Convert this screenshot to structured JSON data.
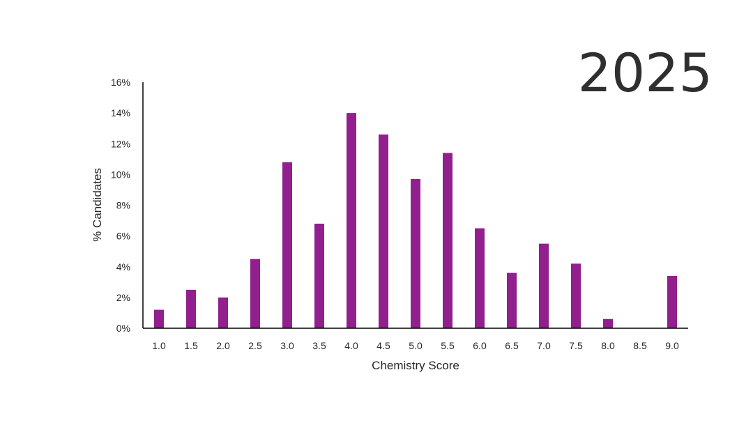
{
  "year": "2025",
  "colors": {
    "bar": "#921f8e",
    "axis": "#000000",
    "text": "#262626"
  },
  "chart_data": {
    "type": "bar",
    "title": "",
    "xlabel": "Chemistry Score",
    "ylabel": "% Candidates",
    "categories": [
      "1.0",
      "1.5",
      "2.0",
      "2.5",
      "3.0",
      "3.5",
      "4.0",
      "4.5",
      "5.0",
      "5.5",
      "6.0",
      "6.5",
      "7.0",
      "7.5",
      "8.0",
      "8.5",
      "9.0"
    ],
    "values": [
      1.2,
      2.5,
      2.0,
      4.5,
      10.8,
      6.8,
      14.0,
      12.6,
      9.7,
      11.4,
      6.5,
      3.6,
      5.5,
      4.2,
      0.6,
      0,
      3.4
    ],
    "ylim": [
      0,
      16
    ],
    "yticks": [
      0,
      2,
      4,
      6,
      8,
      10,
      12,
      14,
      16
    ],
    "ytick_labels": [
      "0%",
      "2%",
      "4%",
      "6%",
      "8%",
      "10%",
      "12%",
      "14%",
      "16%"
    ],
    "grid": false,
    "legend": "none"
  }
}
